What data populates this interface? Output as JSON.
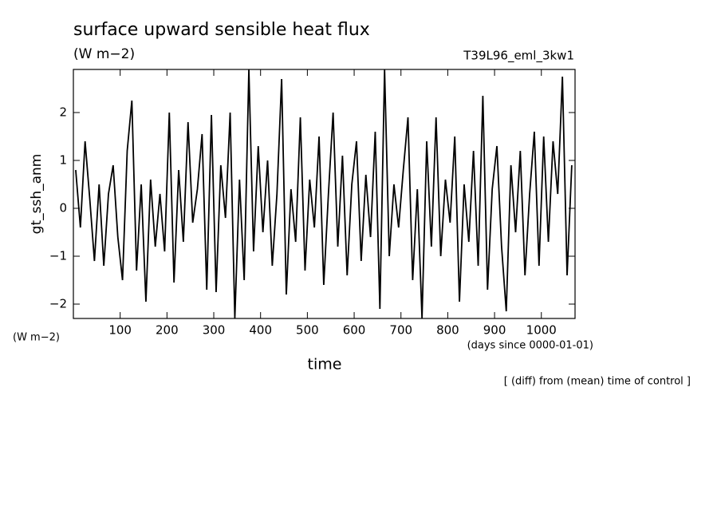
{
  "chart_data": {
    "type": "line",
    "title": "surface upward sensible heat flux",
    "subtitle": "(W m−2)",
    "run_label": "T39L96_eml_3kw1",
    "y_label": "gt_ssh_anm",
    "y_unit": "(W m−2)",
    "x_unit": "(days since 0000-01-01)",
    "x_label": "time",
    "note": "[ (diff) from (mean) time of control ]",
    "color": "#000000",
    "xlim": [
      0,
      1072
    ],
    "ylim": [
      -2.3,
      2.9
    ],
    "xticks": [
      100,
      200,
      300,
      400,
      500,
      600,
      700,
      800,
      900,
      1000
    ],
    "yticks": [
      {
        "value": -2,
        "label": "−2"
      },
      {
        "value": -1,
        "label": "−1"
      },
      0,
      1,
      2
    ],
    "x": [
      5,
      15,
      25,
      35,
      45,
      55,
      65,
      75,
      85,
      95,
      105,
      115,
      125,
      135,
      145,
      155,
      165,
      175,
      185,
      195,
      205,
      215,
      225,
      235,
      245,
      255,
      265,
      275,
      285,
      295,
      305,
      315,
      325,
      335,
      345,
      355,
      365,
      375,
      385,
      395,
      405,
      415,
      425,
      435,
      445,
      455,
      465,
      475,
      485,
      495,
      505,
      515,
      525,
      535,
      545,
      555,
      565,
      575,
      585,
      595,
      605,
      615,
      625,
      635,
      645,
      655,
      665,
      675,
      685,
      695,
      705,
      715,
      725,
      735,
      745,
      755,
      765,
      775,
      785,
      795,
      805,
      815,
      825,
      835,
      845,
      855,
      865,
      875,
      885,
      895,
      905,
      915,
      925,
      935,
      945,
      955,
      965,
      975,
      985,
      995,
      1005,
      1015,
      1025,
      1035,
      1045,
      1055,
      1065
    ],
    "values": [
      0.8,
      -0.4,
      1.4,
      0.2,
      -1.1,
      0.5,
      -1.2,
      0.3,
      0.9,
      -0.6,
      -1.5,
      1.2,
      2.25,
      -1.3,
      0.5,
      -1.95,
      0.6,
      -0.8,
      0.3,
      -0.9,
      2.0,
      -1.55,
      0.8,
      -0.7,
      1.8,
      -0.3,
      0.4,
      1.55,
      -1.7,
      1.95,
      -1.75,
      0.9,
      -0.2,
      2.0,
      -2.3,
      0.6,
      -1.5,
      2.9,
      -0.9,
      1.3,
      -0.5,
      1.0,
      -1.2,
      0.3,
      2.7,
      -1.8,
      0.4,
      -0.7,
      1.9,
      -1.3,
      0.6,
      -0.4,
      1.5,
      -1.6,
      0.3,
      2.0,
      -0.8,
      1.1,
      -1.4,
      0.5,
      1.4,
      -1.1,
      0.7,
      -0.6,
      1.6,
      -2.1,
      2.9,
      -1.0,
      0.5,
      -0.4,
      0.8,
      1.9,
      -1.5,
      0.4,
      -2.3,
      1.4,
      -0.8,
      1.9,
      -1.0,
      0.6,
      -0.3,
      1.5,
      -1.95,
      0.5,
      -0.7,
      1.2,
      -1.2,
      2.35,
      -1.7,
      0.4,
      1.3,
      -0.8,
      -2.15,
      0.9,
      -0.5,
      1.2,
      -1.4,
      0.3,
      1.6,
      -1.2,
      1.5,
      -0.7,
      1.4,
      0.3,
      2.75,
      -1.4,
      0.9
    ]
  }
}
